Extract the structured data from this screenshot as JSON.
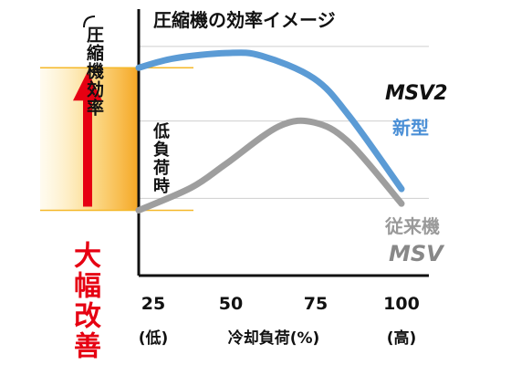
{
  "chart_data": {
    "type": "line",
    "title": "圧縮機の効率イメージ",
    "ylabel": "圧縮機効率",
    "xlabel": "冷却負荷(%)",
    "x": [
      25,
      50,
      75,
      100
    ],
    "xlim": [
      25,
      100
    ],
    "ticks": [
      {
        "value": 25,
        "label": "25",
        "sub": "(低)"
      },
      {
        "value": 50,
        "label": "50",
        "sub": ""
      },
      {
        "value": 75,
        "label": "75",
        "sub": ""
      },
      {
        "value": 100,
        "label": "100",
        "sub": "(高)"
      }
    ],
    "y_ticks": [
      0.29,
      0.58,
      0.86
    ],
    "y_visible_range": [
      0,
      1
    ],
    "grid": true,
    "series": [
      {
        "name": "新型",
        "model": "MSV2",
        "color": "#5b9bd5",
        "points": [
          [
            25,
            0.78
          ],
          [
            35,
            0.815
          ],
          [
            50,
            0.835
          ],
          [
            60,
            0.825
          ],
          [
            75,
            0.74
          ],
          [
            85,
            0.6
          ],
          [
            100,
            0.325
          ]
        ]
      },
      {
        "name": "従来機",
        "model": "MSV",
        "color": "#9e9e9e",
        "points": [
          [
            25,
            0.245
          ],
          [
            40,
            0.33
          ],
          [
            50,
            0.42
          ],
          [
            65,
            0.56
          ],
          [
            75,
            0.575
          ],
          [
            85,
            0.5
          ],
          [
            100,
            0.27
          ]
        ]
      }
    ],
    "annotations": {
      "low_load": "低負荷時",
      "improvement": "大幅改善",
      "band_low": 0.245,
      "band_high": 0.78,
      "band_color": "#f5b829",
      "arrow_color": "#e60012"
    }
  }
}
